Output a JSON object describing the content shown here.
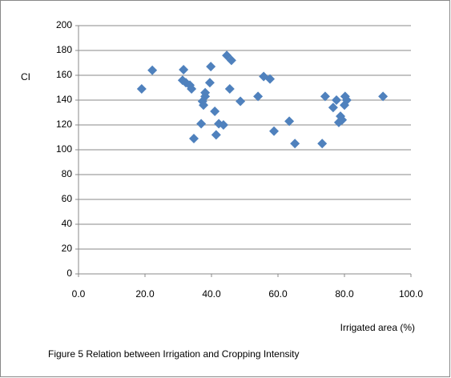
{
  "chart_data": {
    "type": "scatter",
    "y_label": "CI",
    "x_label": "Irrigated area (%)",
    "caption": "Figure 5   Relation between Irrigation and Cropping Intensity",
    "color": "#4f81bd",
    "grid": true,
    "x": [
      19.0,
      22.2,
      31.6,
      31.3,
      32.3,
      33.5,
      34.0,
      34.7,
      36.9,
      37.3,
      37.6,
      38.1,
      38.1,
      39.5,
      39.8,
      41.0,
      41.4,
      42.2,
      43.6,
      44.6,
      45.5,
      46.0,
      48.7,
      54.0,
      55.7,
      57.6,
      58.8,
      63.4,
      65.1,
      73.3,
      74.2,
      76.6,
      77.6,
      78.3,
      78.8,
      79.3,
      80.0,
      80.2,
      80.7,
      91.6
    ],
    "values": [
      149,
      164,
      164.5,
      156,
      154,
      152,
      149,
      109,
      121,
      139,
      136,
      143,
      146,
      154,
      167,
      131,
      112,
      121,
      120,
      176,
      149,
      172,
      139,
      143,
      159,
      157,
      115,
      123,
      105,
      105,
      143,
      134,
      140,
      122,
      127,
      124,
      136,
      143,
      140,
      143
    ],
    "xlim": [
      0,
      100
    ],
    "xticks": [
      {
        "value": 0,
        "label": "0.0"
      },
      {
        "value": 20,
        "label": "20.0"
      },
      {
        "value": 40,
        "label": "40.0"
      },
      {
        "value": 60,
        "label": "60.0"
      },
      {
        "value": 80,
        "label": "80.0"
      },
      {
        "value": 100,
        "label": "100.0"
      }
    ],
    "ylim": [
      0,
      200
    ],
    "yticks": [
      0,
      20,
      40,
      60,
      80,
      100,
      120,
      140,
      160,
      180,
      200
    ]
  }
}
